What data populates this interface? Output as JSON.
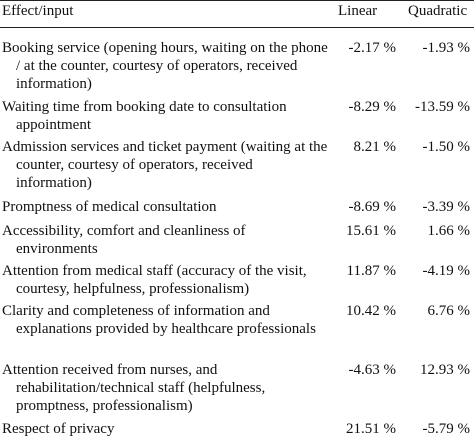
{
  "table": {
    "headers": {
      "effect": "Effect/input",
      "linear": "Linear",
      "quadratic": "Quadratic"
    },
    "rows": [
      {
        "effect": "Booking service (opening hours, waiting on the phone / at the counter, courtesy of operators, received information)",
        "linear": "-2.17 %",
        "quadratic": "-1.93 %"
      },
      {
        "effect": "Waiting time from booking date to consultation appointment",
        "linear": "-8.29 %",
        "quadratic": "-13.59 %"
      },
      {
        "effect": "Admission services and ticket payment (waiting at the counter, courtesy of operators, received information)",
        "linear": "8.21 %",
        "quadratic": "-1.50 %"
      },
      {
        "effect": "Promptness of medical consultation",
        "linear": "-8.69 %",
        "quadratic": "-3.39 %"
      },
      {
        "effect": "Accessibility, comfort and cleanliness of environments",
        "linear": "15.61 %",
        "quadratic": "1.66 %"
      },
      {
        "effect": "Attention from medical staff (accuracy of the visit, courtesy, helpfulness, professionalism)",
        "linear": "11.87 %",
        "quadratic": "-4.19 %"
      },
      {
        "effect": "Clarity and completeness of information and explanations provided by healthcare professionals",
        "linear": "10.42 %",
        "quadratic": "6.76 %"
      },
      {
        "effect": "Attention received from nurses, and rehabilitation/technical staff (helpfulness, promptness, professionalism)",
        "linear": "-4.63 %",
        "quadratic": "12.93 %"
      },
      {
        "effect": "Respect of privacy",
        "linear": "21.51 %",
        "quadratic": "-5.79 %"
      }
    ]
  }
}
